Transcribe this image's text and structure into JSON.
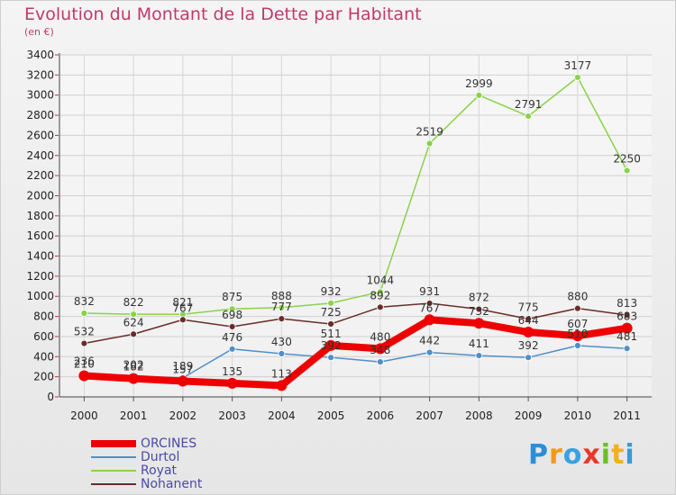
{
  "title": "Evolution du Montant de la Dette par Habitant",
  "unit": "(en €)",
  "logo": [
    "P",
    "r",
    "o",
    "x",
    "i",
    "t",
    "i"
  ],
  "logo_colors": [
    "#2a8fd8",
    "#f29a1a",
    "#3aa0e0",
    "#e53a2a",
    "#6abf2a",
    "#f2b01a",
    "#3a9ad8"
  ],
  "chart_data": {
    "type": "line",
    "title": "Evolution du Montant de la Dette par Habitant",
    "ylabel": "(en €)",
    "ylim": [
      0,
      3400
    ],
    "yticks": [
      "0",
      "200",
      "400",
      "600",
      "800",
      "1000",
      "1200",
      "1400",
      "1600",
      "1800",
      "2000",
      "2200",
      "2400",
      "2600",
      "2800",
      "3000",
      "3200",
      "3400"
    ],
    "categories": [
      "2000",
      "2001",
      "2002",
      "2003",
      "2004",
      "2005",
      "2006",
      "2007",
      "2008",
      "2009",
      "2010",
      "2011"
    ],
    "grid": true,
    "legend": "bottom-left",
    "series": [
      {
        "name": "ORCINES",
        "color": "#ee0000",
        "values": [
          210,
          182,
          157,
          135,
          113,
          511,
          480,
          767,
          732,
          644,
          607,
          683
        ]
      },
      {
        "name": "Durtol",
        "color": "#4f8fc8",
        "values": [
          236,
          202,
          189,
          476,
          430,
          392,
          348,
          442,
          411,
          392,
          510,
          481
        ]
      },
      {
        "name": "Royat",
        "color": "#8ad24a",
        "values": [
          832,
          822,
          821,
          875,
          888,
          932,
          1044,
          2519,
          2999,
          2791,
          3177,
          2250
        ]
      },
      {
        "name": "Nohanent",
        "color": "#6b2b2b",
        "values": [
          532,
          624,
          767,
          698,
          777,
          725,
          892,
          931,
          872,
          775,
          880,
          813
        ]
      }
    ]
  }
}
